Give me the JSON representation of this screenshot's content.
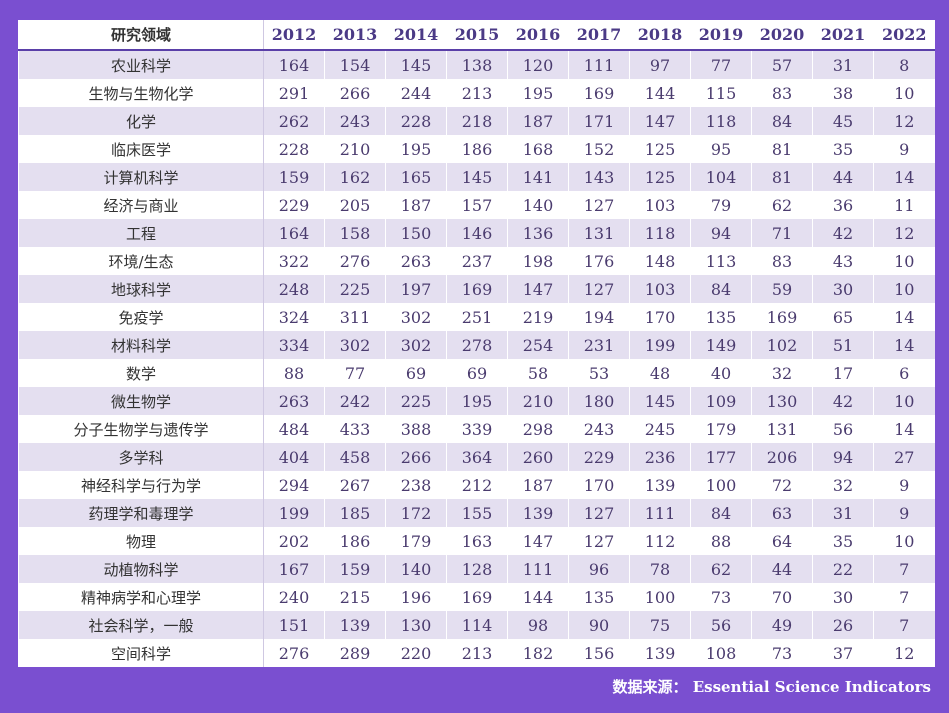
{
  "table": {
    "header_label": "研究领域",
    "years": [
      "2012",
      "2013",
      "2014",
      "2015",
      "2016",
      "2017",
      "2018",
      "2019",
      "2020",
      "2021",
      "2022"
    ],
    "rows": [
      {
        "field": "农业科学",
        "values": [
          "164",
          "154",
          "145",
          "138",
          "120",
          "111",
          "97",
          "77",
          "57",
          "31",
          "8"
        ]
      },
      {
        "field": "生物与生物化学",
        "values": [
          "291",
          "266",
          "244",
          "213",
          "195",
          "169",
          "144",
          "115",
          "83",
          "38",
          "10"
        ]
      },
      {
        "field": "化学",
        "values": [
          "262",
          "243",
          "228",
          "218",
          "187",
          "171",
          "147",
          "118",
          "84",
          "45",
          "12"
        ]
      },
      {
        "field": "临床医学",
        "values": [
          "228",
          "210",
          "195",
          "186",
          "168",
          "152",
          "125",
          "95",
          "81",
          "35",
          "9"
        ]
      },
      {
        "field": "计算机科学",
        "values": [
          "159",
          "162",
          "165",
          "145",
          "141",
          "143",
          "125",
          "104",
          "81",
          "44",
          "14"
        ]
      },
      {
        "field": "经济与商业",
        "values": [
          "229",
          "205",
          "187",
          "157",
          "140",
          "127",
          "103",
          "79",
          "62",
          "36",
          "11"
        ]
      },
      {
        "field": "工程",
        "values": [
          "164",
          "158",
          "150",
          "146",
          "136",
          "131",
          "118",
          "94",
          "71",
          "42",
          "12"
        ]
      },
      {
        "field": "环境/生态",
        "values": [
          "322",
          "276",
          "263",
          "237",
          "198",
          "176",
          "148",
          "113",
          "83",
          "43",
          "10"
        ]
      },
      {
        "field": "地球科学",
        "values": [
          "248",
          "225",
          "197",
          "169",
          "147",
          "127",
          "103",
          "84",
          "59",
          "30",
          "10"
        ]
      },
      {
        "field": "免疫学",
        "values": [
          "324",
          "311",
          "302",
          "251",
          "219",
          "194",
          "170",
          "135",
          "169",
          "65",
          "14"
        ]
      },
      {
        "field": "材料科学",
        "values": [
          "334",
          "302",
          "302",
          "278",
          "254",
          "231",
          "199",
          "149",
          "102",
          "51",
          "14"
        ]
      },
      {
        "field": "数学",
        "values": [
          "88",
          "77",
          "69",
          "69",
          "58",
          "53",
          "48",
          "40",
          "32",
          "17",
          "6"
        ]
      },
      {
        "field": "微生物学",
        "values": [
          "263",
          "242",
          "225",
          "195",
          "210",
          "180",
          "145",
          "109",
          "130",
          "42",
          "10"
        ]
      },
      {
        "field": "分子生物学与遗传学",
        "values": [
          "484",
          "433",
          "388",
          "339",
          "298",
          "243",
          "245",
          "179",
          "131",
          "56",
          "14"
        ]
      },
      {
        "field": "多学科",
        "values": [
          "404",
          "458",
          "266",
          "364",
          "260",
          "229",
          "236",
          "177",
          "206",
          "94",
          "27"
        ]
      },
      {
        "field": "神经科学与行为学",
        "values": [
          "294",
          "267",
          "238",
          "212",
          "187",
          "170",
          "139",
          "100",
          "72",
          "32",
          "9"
        ]
      },
      {
        "field": "药理学和毒理学",
        "values": [
          "199",
          "185",
          "172",
          "155",
          "139",
          "127",
          "111",
          "84",
          "63",
          "31",
          "9"
        ]
      },
      {
        "field": "物理",
        "values": [
          "202",
          "186",
          "179",
          "163",
          "147",
          "127",
          "112",
          "88",
          "64",
          "35",
          "10"
        ]
      },
      {
        "field": "动植物科学",
        "values": [
          "167",
          "159",
          "140",
          "128",
          "111",
          "96",
          "78",
          "62",
          "44",
          "22",
          "7"
        ]
      },
      {
        "field": "精神病学和心理学",
        "values": [
          "240",
          "215",
          "196",
          "169",
          "144",
          "135",
          "100",
          "73",
          "70",
          "30",
          "7"
        ]
      },
      {
        "field": "社会科学，一般",
        "values": [
          "151",
          "139",
          "130",
          "114",
          "98",
          "90",
          "75",
          "56",
          "49",
          "26",
          "7"
        ]
      },
      {
        "field": "空间科学",
        "values": [
          "276",
          "289",
          "220",
          "213",
          "182",
          "156",
          "139",
          "108",
          "73",
          "37",
          "12"
        ]
      }
    ]
  },
  "footer": {
    "source_label": "数据来源：",
    "source_name": "Essential Science Indicators"
  }
}
